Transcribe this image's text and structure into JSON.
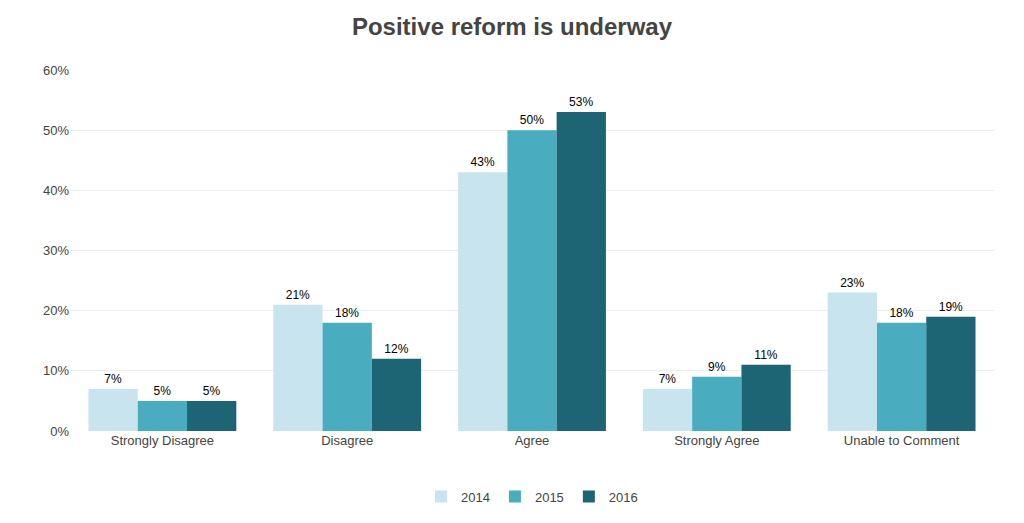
{
  "chart_data": {
    "type": "bar",
    "title": "Positive reform is underway",
    "categories": [
      "Strongly Disagree",
      "Disagree",
      "Agree",
      "Strongly Agree",
      "Unable to Comment"
    ],
    "series": [
      {
        "name": "2014",
        "color": "#c8e4ef",
        "values": [
          7,
          21,
          43,
          7,
          23
        ],
        "value_labels": [
          "7%",
          "21%",
          "43%",
          "7%",
          "23%"
        ]
      },
      {
        "name": "2015",
        "color": "#4aacbf",
        "values": [
          5,
          18,
          50,
          9,
          18
        ],
        "value_labels": [
          "5%",
          "18%",
          "50%",
          "9%",
          "18%"
        ]
      },
      {
        "name": "2016",
        "color": "#1d6475",
        "values": [
          5,
          12,
          53,
          11,
          19
        ],
        "value_labels": [
          "5%",
          "12%",
          "53%",
          "11%",
          "19%"
        ]
      }
    ],
    "ylim": [
      0,
      60
    ],
    "yticks": [
      {
        "value": 0,
        "label": "0%"
      },
      {
        "value": 10,
        "label": "10%"
      },
      {
        "value": 20,
        "label": "20%"
      },
      {
        "value": 30,
        "label": "30%"
      },
      {
        "value": 40,
        "label": "40%"
      },
      {
        "value": 50,
        "label": "50%"
      },
      {
        "value": 60,
        "label": "60%"
      }
    ],
    "grid": true,
    "legend": "bottom",
    "data_labels": true
  }
}
